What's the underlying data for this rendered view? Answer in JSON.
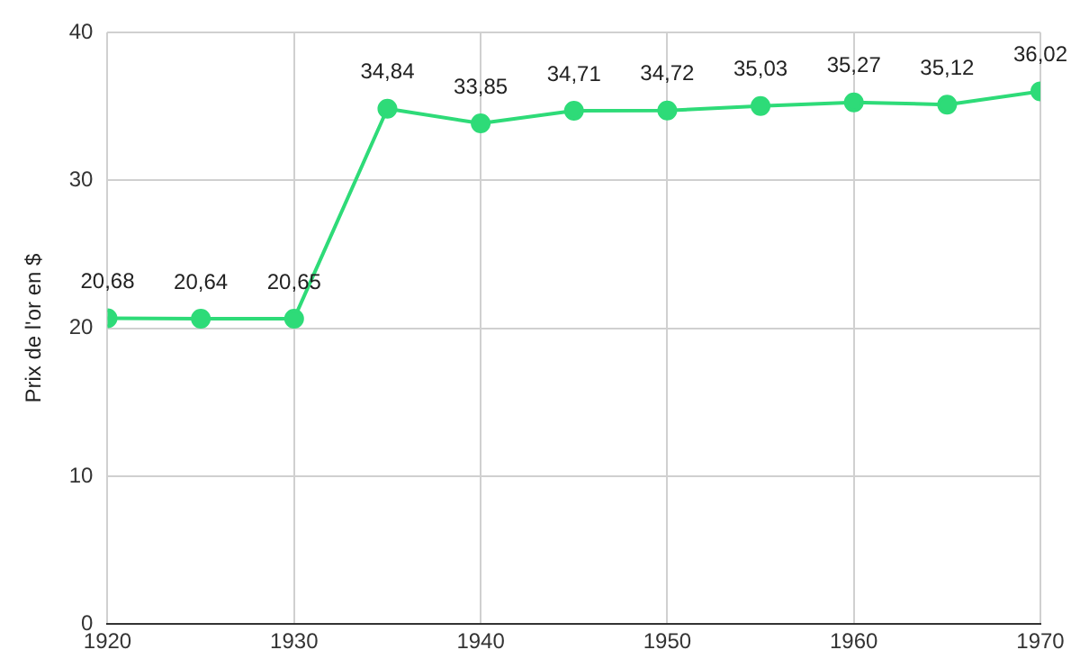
{
  "chart_data": {
    "type": "line",
    "ylabel": "Prix de l'or en $",
    "x": [
      1920,
      1925,
      1930,
      1935,
      1940,
      1945,
      1950,
      1955,
      1960,
      1965,
      1970
    ],
    "series": [
      {
        "color": "#2edb78",
        "values": [
          20.68,
          20.64,
          20.65,
          34.84,
          33.85,
          34.71,
          34.72,
          35.03,
          35.27,
          35.12,
          36.02
        ],
        "value_labels": [
          "20,68",
          "20,64",
          "20,65",
          "34,84",
          "33,85",
          "34,71",
          "34,72",
          "35,03",
          "35,27",
          "35,12",
          "36,02"
        ]
      }
    ],
    "xlim": [
      1920,
      1970
    ],
    "xticks": [
      1920,
      1930,
      1940,
      1950,
      1960,
      1970
    ],
    "ylim": [
      0,
      40
    ],
    "yticks": [
      0,
      10,
      20,
      30,
      40
    ],
    "grid": true,
    "legend": false,
    "marker": "circle",
    "line_style": "solid"
  }
}
